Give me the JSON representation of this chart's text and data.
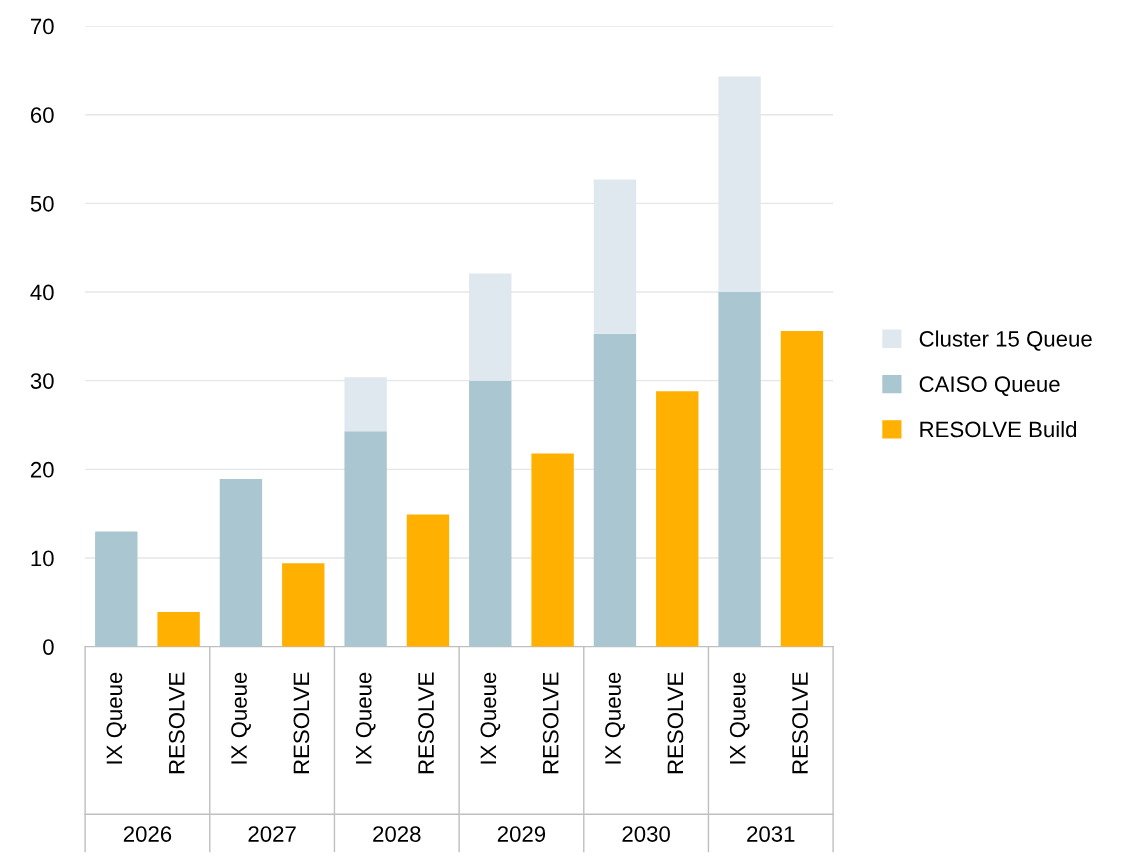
{
  "chart_data": {
    "type": "bar",
    "stacked": true,
    "categories": [
      "IX Queue",
      "RESOLVE",
      "IX Queue",
      "RESOLVE",
      "IX Queue",
      "RESOLVE",
      "IX Queue",
      "RESOLVE",
      "IX Queue",
      "RESOLVE",
      "IX Queue",
      "RESOLVE"
    ],
    "series": [
      {
        "name": "RESOLVE Build",
        "color": "#ffb000",
        "values": [
          null,
          3.9,
          null,
          9.4,
          null,
          14.9,
          null,
          21.8,
          null,
          28.8,
          null,
          35.6
        ]
      },
      {
        "name": "CAISO Queue",
        "color": "#a9c6d1",
        "values": [
          13,
          null,
          18.9,
          null,
          24.3,
          null,
          30,
          null,
          35.3,
          null,
          40,
          null
        ]
      },
      {
        "name": "Cluster 15 Queue",
        "color": "#dfe8ee",
        "values": [
          null,
          null,
          null,
          null,
          6.1,
          null,
          12.1,
          null,
          17.4,
          null,
          24.3,
          null
        ]
      }
    ],
    "annotations": [
      "2026",
      "2027",
      "2028",
      "2029",
      "2030",
      "2031"
    ],
    "ylim": [
      0,
      70
    ],
    "yticks": [
      0,
      10,
      20,
      30,
      40,
      50,
      60,
      70
    ],
    "grid": "y",
    "legend": "right"
  }
}
